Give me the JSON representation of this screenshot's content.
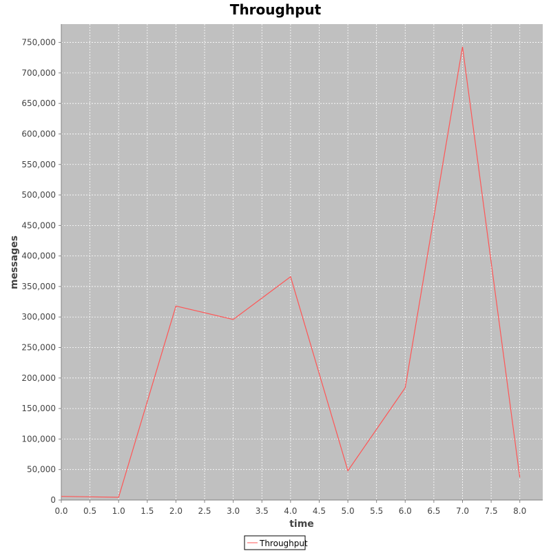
{
  "colors": {
    "plot_background": "#c0c0c0",
    "gridline": "#ffffff",
    "series": "#ff5555",
    "axis": "#808080",
    "text": "#444444"
  },
  "chart_data": {
    "type": "line",
    "title": "Throughput",
    "xlabel": "time",
    "ylabel": "messages",
    "xlim": [
      0,
      8.4
    ],
    "ylim": [
      0,
      780000
    ],
    "x_ticks": [
      "0.0",
      "0.5",
      "1.0",
      "1.5",
      "2.0",
      "2.5",
      "3.0",
      "3.5",
      "4.0",
      "4.5",
      "5.0",
      "5.5",
      "6.0",
      "6.5",
      "7.0",
      "7.5",
      "8.0"
    ],
    "y_ticks": [
      "0",
      "50,000",
      "100,000",
      "150,000",
      "200,000",
      "250,000",
      "300,000",
      "350,000",
      "400,000",
      "450,000",
      "500,000",
      "550,000",
      "600,000",
      "650,000",
      "700,000",
      "750,000"
    ],
    "grid": true,
    "legend_position": "bottom-center",
    "series": [
      {
        "name": "Throughput",
        "x": [
          0,
          1,
          2,
          3,
          4,
          5,
          6,
          7,
          8
        ],
        "y": [
          6000,
          4500,
          318000,
          296000,
          366000,
          48000,
          184000,
          743000,
          37000
        ]
      }
    ]
  }
}
